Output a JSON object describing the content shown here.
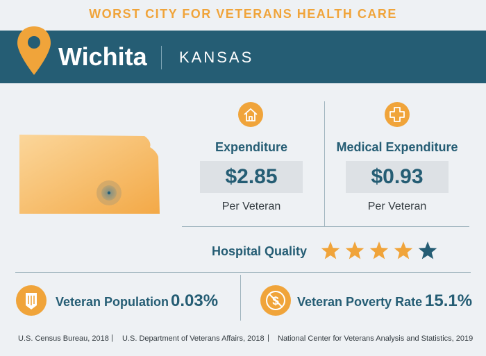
{
  "headline": "WORST CITY FOR VETERANS HEALTH CARE",
  "banner": {
    "city": "Wichita",
    "state": "KANSAS"
  },
  "metrics": [
    {
      "title": "Expenditure",
      "value": "$2.85",
      "unit": "Per Veteran",
      "icon": "house-icon"
    },
    {
      "title": "Medical Expenditure",
      "value": "$0.93",
      "unit": "Per Veteran",
      "icon": "medical-cross-icon"
    }
  ],
  "hospital_quality": {
    "label": "Hospital Quality",
    "rating": 4,
    "max": 5
  },
  "stats": [
    {
      "label": "Veteran Population",
      "value": "0.03%",
      "icon": "military-rank-icon"
    },
    {
      "label": "Veteran Poverty Rate",
      "value": "15.1%",
      "icon": "no-dollar-icon"
    }
  ],
  "sources": [
    "U.S. Census Bureau, 2018",
    "U.S. Department of Veterans Affairs, 2018",
    "National Center for Veterans Analysis and Statistics, 2019"
  ],
  "colors": {
    "accent": "#f0a43a",
    "primary": "#255d74",
    "background": "#eef1f4",
    "box": "#dde1e5"
  }
}
